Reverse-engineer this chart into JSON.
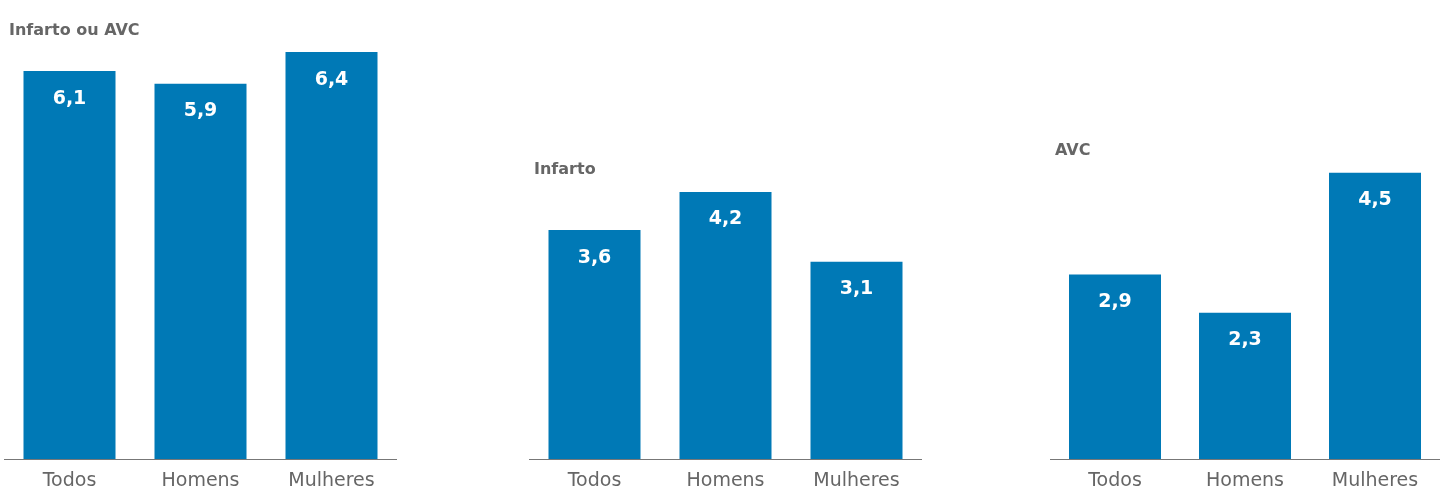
{
  "chart_data": [
    {
      "type": "bar",
      "title": "Infarto ou AVC",
      "categories": [
        "Todos",
        "Homens",
        "Mulheres"
      ],
      "values": [
        6.1,
        5.9,
        6.4
      ],
      "value_labels": [
        "6,1",
        "5,9",
        "6,4"
      ],
      "color": "#0079b6"
    },
    {
      "type": "bar",
      "title": "Infarto",
      "categories": [
        "Todos",
        "Homens",
        "Mulheres"
      ],
      "values": [
        3.6,
        4.2,
        3.1
      ],
      "value_labels": [
        "3,6",
        "4,2",
        "3,1"
      ],
      "color": "#0079b6"
    },
    {
      "type": "bar",
      "title": "AVC",
      "categories": [
        "Todos",
        "Homens",
        "Mulheres"
      ],
      "values": [
        2.9,
        2.3,
        4.5
      ],
      "value_labels": [
        "2,9",
        "2,3",
        "4,5"
      ],
      "color": "#0079b6"
    }
  ]
}
